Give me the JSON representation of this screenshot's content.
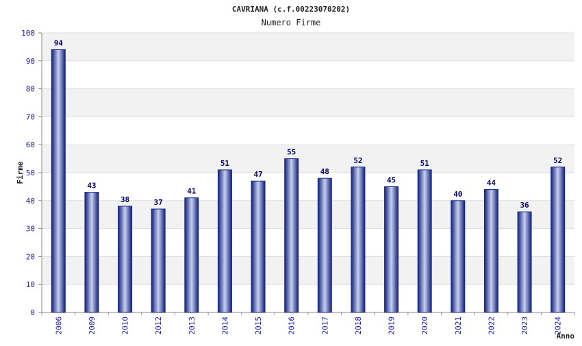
{
  "chart_data": {
    "type": "bar",
    "title": "CAVRIANA (c.f.00223070202)",
    "subtitle": "Numero Firme",
    "xlabel": "Anno",
    "ylabel": "Firme",
    "ylim": [
      0,
      100
    ],
    "yticks": [
      0,
      10,
      20,
      30,
      40,
      50,
      60,
      70,
      80,
      90,
      100
    ],
    "categories": [
      "2006",
      "2009",
      "2010",
      "2012",
      "2013",
      "2014",
      "2015",
      "2016",
      "2017",
      "2018",
      "2019",
      "2020",
      "2021",
      "2022",
      "2023",
      "2024"
    ],
    "values": [
      94,
      43,
      38,
      37,
      41,
      51,
      47,
      55,
      48,
      52,
      45,
      51,
      40,
      44,
      36,
      52
    ],
    "grid": true,
    "bar_color": "#1a2a8c",
    "bar_highlight": "#c8d0f0",
    "band_color": "#f2f2f2",
    "tick_label_color": "#1a1aa6",
    "value_label_color": "#000066"
  }
}
